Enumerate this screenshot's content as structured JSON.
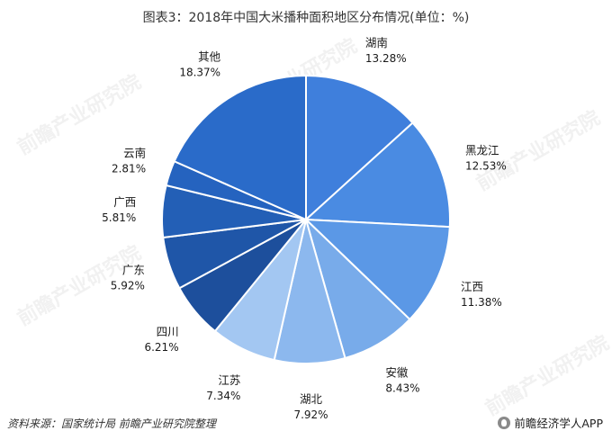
{
  "title": "图表3：2018年中国大米播种面积地区分布情况(单位：%)",
  "footer": {
    "source": "资料来源：国家统计局 前瞻产业研究院整理",
    "brand": "前瞻经济学人APP"
  },
  "watermark": "前瞻产业研究院",
  "chart_data": {
    "type": "pie",
    "title": "图表3：2018年中国大米播种面积地区分布情况(单位：%)",
    "start_angle_deg": 0,
    "direction": "clockwise",
    "slices": [
      {
        "name": "湖南",
        "value": 13.28,
        "label": "13.28%",
        "color": "#3f7fdc"
      },
      {
        "name": "黑龙江",
        "value": 12.53,
        "label": "12.53%",
        "color": "#4a8be2"
      },
      {
        "name": "江西",
        "value": 11.38,
        "label": "11.38%",
        "color": "#5b98e6"
      },
      {
        "name": "安徽",
        "value": 8.43,
        "label": "8.43%",
        "color": "#78abea"
      },
      {
        "name": "湖北",
        "value": 7.92,
        "label": "7.92%",
        "color": "#8cb8ee"
      },
      {
        "name": "江苏",
        "value": 7.34,
        "label": "7.34%",
        "color": "#a3c7f2"
      },
      {
        "name": "四川",
        "value": 6.21,
        "label": "6.21%",
        "color": "#1d4f9c"
      },
      {
        "name": "广东",
        "value": 5.92,
        "label": "5.92%",
        "color": "#1f56a8"
      },
      {
        "name": "广西",
        "value": 5.81,
        "label": "5.81%",
        "color": "#235fb6"
      },
      {
        "name": "云南",
        "value": 2.81,
        "label": "2.81%",
        "color": "#2563bf"
      },
      {
        "name": "其他",
        "value": 18.37,
        "label": "18.37%",
        "color": "#2a6bc9"
      }
    ]
  }
}
